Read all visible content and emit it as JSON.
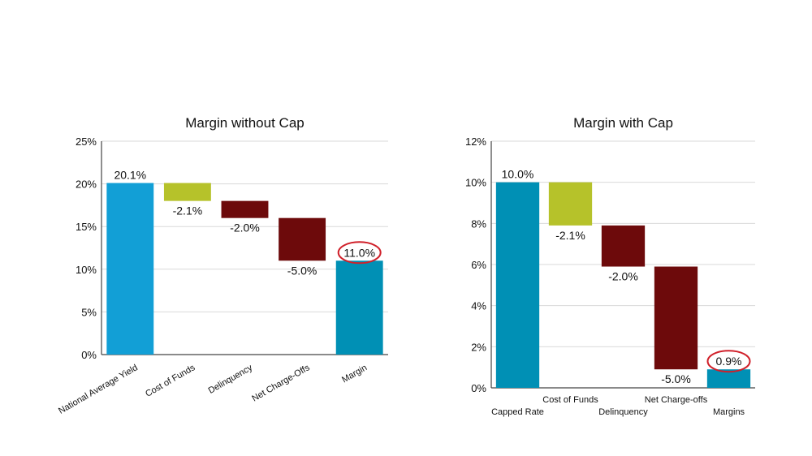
{
  "chart_data": [
    {
      "type": "waterfall",
      "title": "Margin without Cap",
      "categories": [
        "National Average Yield",
        "Cost of Funds",
        "Delinquency",
        "Net Charge-Offs",
        "Margin"
      ],
      "values": [
        20.1,
        -2.1,
        -2.0,
        -5.0,
        11.0
      ],
      "kinds": [
        "total",
        "delta",
        "delta",
        "delta",
        "total"
      ],
      "data_labels": [
        "20.1%",
        "-2.1%",
        "-2.0%",
        "-5.0%",
        "11.0%"
      ],
      "highlighted": [
        false,
        false,
        false,
        false,
        true
      ],
      "colors": [
        "#129fd6",
        "#b6c22a",
        "#6d0a0b",
        "#6d0a0b",
        "#0090b5"
      ],
      "ylim": [
        0,
        25
      ],
      "yticks": [
        "0%",
        "5%",
        "10%",
        "15%",
        "20%",
        "25%"
      ],
      "ytick_values": [
        0,
        5,
        10,
        15,
        20,
        25
      ],
      "xlabel_style": "rotated",
      "grid": true,
      "xlabel": "",
      "ylabel": ""
    },
    {
      "type": "waterfall",
      "title": "Margin with Cap",
      "categories": [
        "Capped Rate",
        "Cost of Funds",
        "Delinquency",
        "Net Charge-offs",
        "Margins"
      ],
      "values": [
        10.0,
        -2.1,
        -2.0,
        -5.0,
        0.9
      ],
      "kinds": [
        "total",
        "delta",
        "delta",
        "delta",
        "total"
      ],
      "data_labels": [
        "10.0%",
        "-2.1%",
        "-2.0%",
        "-5.0%",
        "0.9%"
      ],
      "highlighted": [
        false,
        false,
        false,
        false,
        true
      ],
      "colors": [
        "#0090b5",
        "#b6c22a",
        "#6d0a0b",
        "#6d0a0b",
        "#0090b5"
      ],
      "ylim": [
        0,
        12
      ],
      "yticks": [
        "0%",
        "2%",
        "4%",
        "6%",
        "8%",
        "10%",
        "12%"
      ],
      "ytick_values": [
        0,
        2,
        4,
        6,
        8,
        10,
        12
      ],
      "xlabel_style": "staggered",
      "grid": true,
      "xlabel": "",
      "ylabel": ""
    }
  ],
  "highlight_color": "#d0202a"
}
